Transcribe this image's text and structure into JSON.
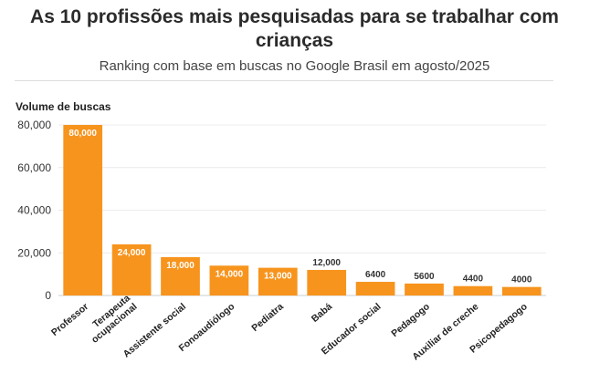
{
  "chart_data": {
    "type": "bar",
    "title": "As 10 profissões mais pesquisadas para se trabalhar com crianças",
    "subtitle": "Ranking com base em buscas no Google Brasil em agosto/2025",
    "ylabel": "Volume de buscas",
    "xlabel": "",
    "ylim": [
      0,
      80000
    ],
    "yticks": [
      0,
      20000,
      40000,
      60000,
      80000
    ],
    "ytick_labels": [
      "0",
      "20,000",
      "40,000",
      "60,000",
      "80,000"
    ],
    "grid": true,
    "bar_color": "#F7941D",
    "categories": [
      [
        "Professor"
      ],
      [
        "Terapeuta",
        "ocupacional"
      ],
      [
        "Assistente social"
      ],
      [
        "Fonoaudiólogo"
      ],
      [
        "Pediatra"
      ],
      [
        "Babá"
      ],
      [
        "Educador social"
      ],
      [
        "Pedagogo"
      ],
      [
        "Auxiliar de creche"
      ],
      [
        "Psicopedagogo"
      ]
    ],
    "values": [
      80000,
      24000,
      18000,
      14000,
      13000,
      12000,
      6400,
      5600,
      4400,
      4000
    ],
    "data_labels": [
      "80,000",
      "24,000",
      "18,000",
      "14,000",
      "13,000",
      "12,000",
      "6400",
      "5600",
      "4400",
      "4000"
    ]
  }
}
